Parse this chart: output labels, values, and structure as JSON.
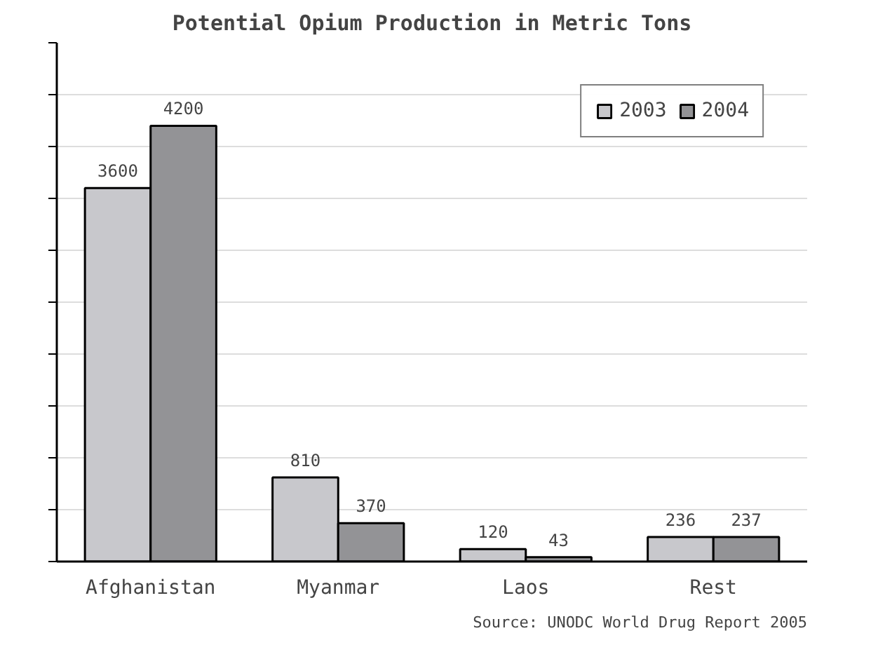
{
  "chart_data": {
    "type": "bar",
    "title": "Potential Opium Production in Metric Tons",
    "categories": [
      "Afghanistan",
      "Myanmar",
      "Laos",
      "Rest"
    ],
    "series": [
      {
        "name": "2003",
        "color": "#c8c8cc",
        "values": [
          3600,
          810,
          120,
          236
        ]
      },
      {
        "name": "2004",
        "color": "#939396",
        "values": [
          4200,
          370,
          43,
          237
        ]
      }
    ],
    "ylim": [
      0,
      5000
    ],
    "yticks": [
      {
        "value": 0,
        "label": null
      },
      {
        "value": 500,
        "label": null
      },
      {
        "value": 1000,
        "label": null
      },
      {
        "value": 1500,
        "label": null
      },
      {
        "value": 2000,
        "label": null
      },
      {
        "value": 2500,
        "label": null
      },
      {
        "value": 3000,
        "label": null
      },
      {
        "value": 3500,
        "label": null
      },
      {
        "value": 4000,
        "label": null
      },
      {
        "value": 4500,
        "label": null
      },
      {
        "value": 5000,
        "label": null
      }
    ],
    "tick_labels": "x",
    "grid": "y",
    "legend": "top right",
    "data_labels": true,
    "annotations": [
      "Source: UNODC World Drug Report 2005"
    ]
  }
}
